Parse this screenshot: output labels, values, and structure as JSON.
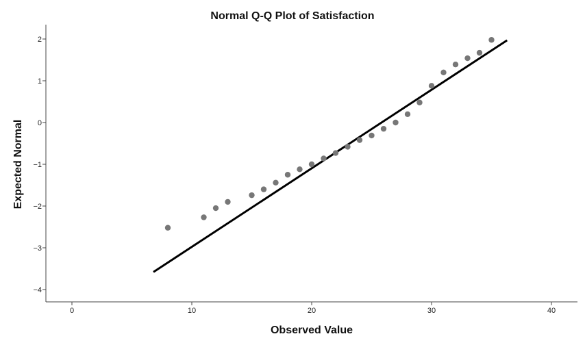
{
  "chart_data": {
    "type": "scatter",
    "title": "Normal Q-Q Plot of Satisfaction",
    "xlabel": "Observed Value",
    "ylabel": "Expected Normal",
    "xlim": [
      -2,
      42
    ],
    "ylim": [
      -4.3,
      2.3
    ],
    "xticks": [
      0,
      10,
      20,
      30,
      40
    ],
    "yticks": [
      2,
      1,
      0,
      -1,
      -2,
      -3,
      -4
    ],
    "ytick_labels": [
      "2",
      "1",
      "0",
      "−1",
      "−2",
      "−3",
      "−4"
    ],
    "grid": false,
    "series": [
      {
        "name": "Observed",
        "points": [
          {
            "x": 8,
            "y": -2.52
          },
          {
            "x": 11,
            "y": -2.27
          },
          {
            "x": 12,
            "y": -2.05
          },
          {
            "x": 13,
            "y": -1.9
          },
          {
            "x": 15,
            "y": -1.74
          },
          {
            "x": 16,
            "y": -1.6
          },
          {
            "x": 17,
            "y": -1.44
          },
          {
            "x": 18,
            "y": -1.25
          },
          {
            "x": 19,
            "y": -1.12
          },
          {
            "x": 20,
            "y": -1.0
          },
          {
            "x": 21,
            "y": -0.86
          },
          {
            "x": 22,
            "y": -0.73
          },
          {
            "x": 23,
            "y": -0.58
          },
          {
            "x": 24,
            "y": -0.42
          },
          {
            "x": 25,
            "y": -0.31
          },
          {
            "x": 26,
            "y": -0.15
          },
          {
            "x": 27,
            "y": 0.0
          },
          {
            "x": 28,
            "y": 0.2
          },
          {
            "x": 29,
            "y": 0.48
          },
          {
            "x": 30,
            "y": 0.88
          },
          {
            "x": 31,
            "y": 1.2
          },
          {
            "x": 32,
            "y": 1.39
          },
          {
            "x": 33,
            "y": 1.54
          },
          {
            "x": 34,
            "y": 1.67
          },
          {
            "x": 35,
            "y": 1.98
          }
        ]
      }
    ],
    "reference_line": {
      "x1": 6.8,
      "y1": -3.58,
      "x2": 36.3,
      "y2": 1.97
    }
  }
}
